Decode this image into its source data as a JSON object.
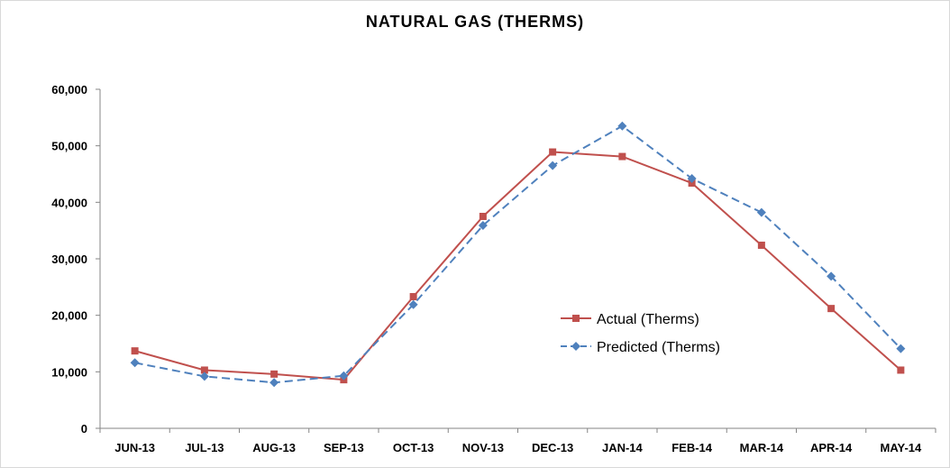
{
  "chart_data": {
    "type": "line",
    "title": "NATURAL GAS (THERMS)",
    "xlabel": "",
    "ylabel": "",
    "categories": [
      "JUN-13",
      "JUL-13",
      "AUG-13",
      "SEP-13",
      "OCT-13",
      "NOV-13",
      "DEC-13",
      "JAN-14",
      "FEB-14",
      "MAR-14",
      "APR-14",
      "MAY-14"
    ],
    "ylim": [
      0,
      60000
    ],
    "yticks": [
      0,
      10000,
      20000,
      30000,
      40000,
      50000,
      60000
    ],
    "ytick_labels": [
      "0",
      "10,000",
      "20,000",
      "30,000",
      "40,000",
      "50,000",
      "60,000"
    ],
    "grid": false,
    "legend_position": "center-right",
    "series": [
      {
        "name": "Actual (Therms)",
        "color": "#c0504d",
        "marker": "square",
        "line_style": "solid",
        "values": [
          13700,
          10300,
          9600,
          8600,
          23300,
          37500,
          48900,
          48100,
          43400,
          32400,
          21200,
          10300
        ]
      },
      {
        "name": "Predicted (Therms)",
        "color": "#4f81bd",
        "marker": "diamond",
        "line_style": "dashed",
        "values": [
          11600,
          9200,
          8100,
          9300,
          21900,
          35900,
          46500,
          53500,
          44200,
          38200,
          26900,
          14100
        ]
      }
    ]
  }
}
